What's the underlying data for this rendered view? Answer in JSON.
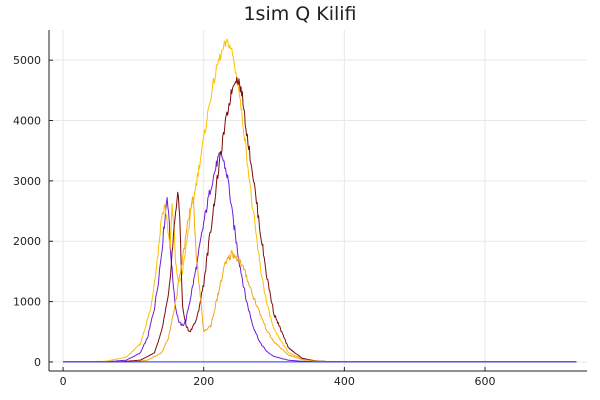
{
  "chart_data": {
    "type": "line",
    "title": "1sim Q Kilifi",
    "xlabel": "",
    "ylabel": "",
    "xlim": [
      -20,
      745
    ],
    "ylim": [
      -150,
      5500
    ],
    "xticks": [
      0,
      200,
      400,
      600
    ],
    "yticks": [
      0,
      1000,
      2000,
      3000,
      4000,
      5000
    ],
    "grid": true,
    "legend": "none",
    "series": [
      {
        "color": "#6a1fd8",
        "x": [
          0,
          60,
          90,
          110,
          120,
          130,
          135,
          140,
          145,
          148,
          150,
          152,
          155,
          160,
          165,
          170,
          175,
          180,
          190,
          200,
          210,
          220,
          225,
          230,
          235,
          240,
          250,
          260,
          270,
          280,
          290,
          300,
          320,
          340,
          360,
          380,
          400,
          500,
          600,
          730
        ],
        "values": [
          0,
          0,
          30,
          150,
          400,
          900,
          1300,
          1800,
          2400,
          2750,
          2500,
          2000,
          1500,
          900,
          650,
          600,
          700,
          1000,
          1600,
          2300,
          2900,
          3350,
          3450,
          3250,
          3000,
          2500,
          1700,
          1050,
          600,
          320,
          170,
          90,
          30,
          10,
          5,
          0,
          0,
          0,
          0,
          0
        ]
      },
      {
        "color": "#ffc000",
        "x": [
          0,
          60,
          90,
          110,
          125,
          135,
          140,
          145,
          148,
          152,
          155,
          158,
          160,
          165,
          170,
          175,
          180,
          190,
          200,
          210,
          220,
          230,
          235,
          240,
          250,
          260,
          270,
          280,
          290,
          300,
          320,
          340,
          360,
          380,
          400,
          500,
          600,
          730
        ],
        "values": [
          0,
          10,
          80,
          300,
          900,
          1800,
          2400,
          2600,
          2300,
          1900,
          2550,
          2200,
          1600,
          1300,
          1500,
          1900,
          2350,
          3000,
          3700,
          4400,
          4950,
          5250,
          5300,
          5150,
          4500,
          3550,
          2500,
          1600,
          950,
          530,
          160,
          50,
          15,
          5,
          0,
          0,
          0,
          0
        ]
      },
      {
        "color": "#7a0c0c",
        "x": [
          0,
          80,
          110,
          130,
          140,
          150,
          155,
          160,
          163,
          166,
          168,
          170,
          175,
          180,
          190,
          200,
          210,
          220,
          230,
          240,
          245,
          250,
          255,
          260,
          270,
          280,
          290,
          300,
          320,
          340,
          360,
          380,
          400,
          500,
          600,
          730
        ],
        "values": [
          0,
          0,
          30,
          150,
          500,
          1100,
          1800,
          2500,
          2800,
          2400,
          1600,
          900,
          600,
          500,
          700,
          1300,
          2200,
          3100,
          3900,
          4500,
          4700,
          4650,
          4400,
          3900,
          3100,
          2200,
          1400,
          800,
          240,
          60,
          15,
          5,
          0,
          0,
          0,
          0
        ]
      },
      {
        "color": "#f3a61b",
        "x": [
          0,
          100,
          120,
          140,
          150,
          160,
          170,
          180,
          185,
          190,
          200,
          210,
          220,
          230,
          240,
          250,
          260,
          270,
          280,
          290,
          300,
          320,
          340,
          360,
          380,
          400,
          500,
          600,
          730
        ],
        "values": [
          0,
          0,
          30,
          150,
          400,
          1000,
          1700,
          2500,
          2700,
          1700,
          500,
          600,
          1100,
          1600,
          1800,
          1700,
          1450,
          1100,
          800,
          520,
          330,
          120,
          40,
          10,
          5,
          0,
          0,
          0,
          0
        ]
      },
      {
        "color": "#2030ff",
        "x": [
          0,
          730
        ],
        "values": [
          0,
          0
        ]
      }
    ]
  }
}
